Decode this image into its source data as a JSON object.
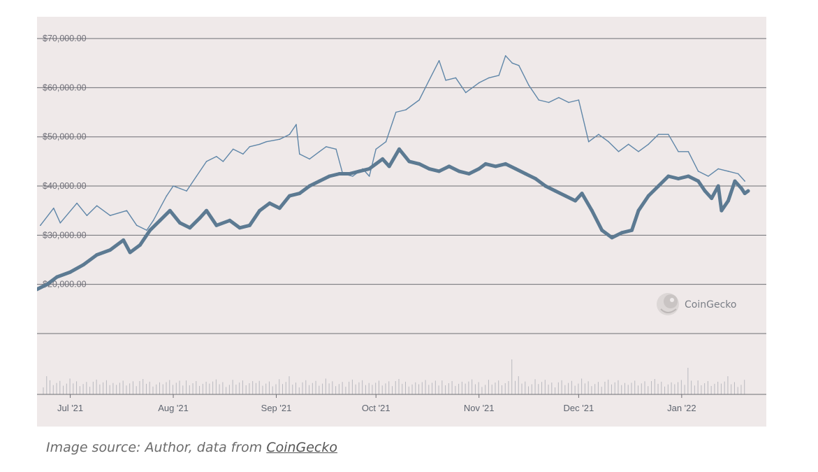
{
  "caption": {
    "prefix": "Image source: Author, data from ",
    "link_text": "CoinGecko"
  },
  "watermark": {
    "text": "CoinGecko",
    "icon": "gecko-logo-icon"
  },
  "colors": {
    "background": "#efe9e9",
    "gridline": "#6e6e74",
    "series_thin": "#5f86a8",
    "series_thick": "#5c7a92",
    "volume": "#b9b9bf"
  },
  "chart_data": {
    "type": "line",
    "title": "",
    "xlabel": "",
    "ylabel": "",
    "ylim": [
      10000,
      72000
    ],
    "yticks": [
      {
        "value": 70000,
        "label": "$70,000.00"
      },
      {
        "value": 60000,
        "label": "$60,000.00"
      },
      {
        "value": 50000,
        "label": "$50,000.00"
      },
      {
        "value": 40000,
        "label": "$40,000.00"
      },
      {
        "value": 30000,
        "label": "$30,000.00"
      },
      {
        "value": 20000,
        "label": "$20,000.00"
      }
    ],
    "xrange": [
      "2021-06-21",
      "2022-01-21"
    ],
    "xticks": [
      {
        "date": "2021-07-01",
        "label": "Jul '21"
      },
      {
        "date": "2021-08-01",
        "label": "Aug '21"
      },
      {
        "date": "2021-09-01",
        "label": "Sep '21"
      },
      {
        "date": "2021-10-01",
        "label": "Oct '21"
      },
      {
        "date": "2021-11-01",
        "label": "Nov '21"
      },
      {
        "date": "2021-12-01",
        "label": "Dec '21"
      },
      {
        "date": "2022-01-01",
        "label": "Jan '22"
      }
    ],
    "grid": true,
    "legend": "none",
    "series": [
      {
        "style": "thin",
        "points": [
          [
            "2021-06-22",
            32000
          ],
          [
            "2021-06-26",
            35500
          ],
          [
            "2021-06-28",
            32500
          ],
          [
            "2021-07-03",
            36500
          ],
          [
            "2021-07-06",
            34000
          ],
          [
            "2021-07-09",
            36000
          ],
          [
            "2021-07-13",
            34000
          ],
          [
            "2021-07-18",
            35000
          ],
          [
            "2021-07-21",
            32000
          ],
          [
            "2021-07-24",
            31000
          ],
          [
            "2021-07-26",
            33000
          ],
          [
            "2021-07-30",
            38000
          ],
          [
            "2021-08-01",
            40000
          ],
          [
            "2021-08-03",
            39500
          ],
          [
            "2021-08-05",
            39000
          ],
          [
            "2021-08-08",
            42000
          ],
          [
            "2021-08-11",
            45000
          ],
          [
            "2021-08-14",
            46000
          ],
          [
            "2021-08-16",
            45000
          ],
          [
            "2021-08-19",
            47500
          ],
          [
            "2021-08-22",
            46500
          ],
          [
            "2021-08-24",
            48000
          ],
          [
            "2021-08-27",
            48500
          ],
          [
            "2021-08-29",
            49000
          ],
          [
            "2021-09-02",
            49500
          ],
          [
            "2021-09-05",
            50500
          ],
          [
            "2021-09-07",
            52500
          ],
          [
            "2021-09-08",
            46500
          ],
          [
            "2021-09-11",
            45500
          ],
          [
            "2021-09-14",
            47000
          ],
          [
            "2021-09-16",
            48000
          ],
          [
            "2021-09-19",
            47500
          ],
          [
            "2021-09-21",
            42500
          ],
          [
            "2021-09-24",
            42000
          ],
          [
            "2021-09-27",
            43500
          ],
          [
            "2021-09-29",
            42000
          ],
          [
            "2021-10-01",
            47500
          ],
          [
            "2021-10-04",
            49000
          ],
          [
            "2021-10-07",
            55000
          ],
          [
            "2021-10-10",
            55500
          ],
          [
            "2021-10-14",
            57500
          ],
          [
            "2021-10-17",
            61500
          ],
          [
            "2021-10-20",
            65500
          ],
          [
            "2021-10-22",
            61500
          ],
          [
            "2021-10-25",
            62000
          ],
          [
            "2021-10-28",
            59000
          ],
          [
            "2021-11-01",
            61000
          ],
          [
            "2021-11-04",
            62000
          ],
          [
            "2021-11-07",
            62500
          ],
          [
            "2021-11-09",
            66500
          ],
          [
            "2021-11-11",
            65000
          ],
          [
            "2021-11-13",
            64500
          ],
          [
            "2021-11-16",
            60500
          ],
          [
            "2021-11-19",
            57500
          ],
          [
            "2021-11-22",
            57000
          ],
          [
            "2021-11-25",
            58000
          ],
          [
            "2021-11-28",
            57000
          ],
          [
            "2021-12-01",
            57500
          ],
          [
            "2021-12-04",
            49000
          ],
          [
            "2021-12-07",
            50500
          ],
          [
            "2021-12-10",
            49000
          ],
          [
            "2021-12-13",
            47000
          ],
          [
            "2021-12-16",
            48500
          ],
          [
            "2021-12-19",
            47000
          ],
          [
            "2021-12-22",
            48500
          ],
          [
            "2021-12-25",
            50500
          ],
          [
            "2021-12-28",
            50500
          ],
          [
            "2021-12-31",
            47000
          ],
          [
            "2022-01-03",
            47000
          ],
          [
            "2022-01-06",
            43000
          ],
          [
            "2022-01-09",
            42000
          ],
          [
            "2022-01-12",
            43500
          ],
          [
            "2022-01-15",
            43000
          ],
          [
            "2022-01-18",
            42500
          ],
          [
            "2022-01-20",
            41000
          ]
        ]
      },
      {
        "style": "thick",
        "points": [
          [
            "2021-06-21",
            19000
          ],
          [
            "2021-06-24",
            20000
          ],
          [
            "2021-06-27",
            21500
          ],
          [
            "2021-07-01",
            22500
          ],
          [
            "2021-07-05",
            24000
          ],
          [
            "2021-07-09",
            26000
          ],
          [
            "2021-07-13",
            27000
          ],
          [
            "2021-07-17",
            29000
          ],
          [
            "2021-07-19",
            26500
          ],
          [
            "2021-07-22",
            28000
          ],
          [
            "2021-07-25",
            31000
          ],
          [
            "2021-07-28",
            33000
          ],
          [
            "2021-07-31",
            35000
          ],
          [
            "2021-08-03",
            32500
          ],
          [
            "2021-08-06",
            31500
          ],
          [
            "2021-08-09",
            33500
          ],
          [
            "2021-08-11",
            35000
          ],
          [
            "2021-08-14",
            32000
          ],
          [
            "2021-08-18",
            33000
          ],
          [
            "2021-08-21",
            31500
          ],
          [
            "2021-08-24",
            32000
          ],
          [
            "2021-08-27",
            35000
          ],
          [
            "2021-08-30",
            36500
          ],
          [
            "2021-09-02",
            35500
          ],
          [
            "2021-09-05",
            38000
          ],
          [
            "2021-09-08",
            38500
          ],
          [
            "2021-09-11",
            40000
          ],
          [
            "2021-09-14",
            41000
          ],
          [
            "2021-09-17",
            42000
          ],
          [
            "2021-09-20",
            42500
          ],
          [
            "2021-09-23",
            42500
          ],
          [
            "2021-09-26",
            43000
          ],
          [
            "2021-09-29",
            43500
          ],
          [
            "2021-10-01",
            44500
          ],
          [
            "2021-10-03",
            45500
          ],
          [
            "2021-10-05",
            44000
          ],
          [
            "2021-10-08",
            47500
          ],
          [
            "2021-10-11",
            45000
          ],
          [
            "2021-10-14",
            44500
          ],
          [
            "2021-10-17",
            43500
          ],
          [
            "2021-10-20",
            43000
          ],
          [
            "2021-10-23",
            44000
          ],
          [
            "2021-10-26",
            43000
          ],
          [
            "2021-10-29",
            42500
          ],
          [
            "2021-11-01",
            43500
          ],
          [
            "2021-11-03",
            44500
          ],
          [
            "2021-11-06",
            44000
          ],
          [
            "2021-11-09",
            44500
          ],
          [
            "2021-11-12",
            43500
          ],
          [
            "2021-11-15",
            42500
          ],
          [
            "2021-11-18",
            41500
          ],
          [
            "2021-11-21",
            40000
          ],
          [
            "2021-11-24",
            39000
          ],
          [
            "2021-11-27",
            38000
          ],
          [
            "2021-11-30",
            37000
          ],
          [
            "2021-12-02",
            38500
          ],
          [
            "2021-12-05",
            35000
          ],
          [
            "2021-12-08",
            31000
          ],
          [
            "2021-12-11",
            29500
          ],
          [
            "2021-12-14",
            30500
          ],
          [
            "2021-12-17",
            31000
          ],
          [
            "2021-12-19",
            35000
          ],
          [
            "2021-12-22",
            38000
          ],
          [
            "2021-12-25",
            40000
          ],
          [
            "2021-12-28",
            42000
          ],
          [
            "2021-12-31",
            41500
          ],
          [
            "2022-01-03",
            42000
          ],
          [
            "2022-01-06",
            41000
          ],
          [
            "2022-01-08",
            39000
          ],
          [
            "2022-01-10",
            37500
          ],
          [
            "2022-01-12",
            40000
          ],
          [
            "2022-01-13",
            35000
          ],
          [
            "2022-01-15",
            37000
          ],
          [
            "2022-01-17",
            41000
          ],
          [
            "2022-01-19",
            39500
          ],
          [
            "2022-01-20",
            38500
          ],
          [
            "2022-01-21",
            39000
          ]
        ]
      }
    ]
  }
}
